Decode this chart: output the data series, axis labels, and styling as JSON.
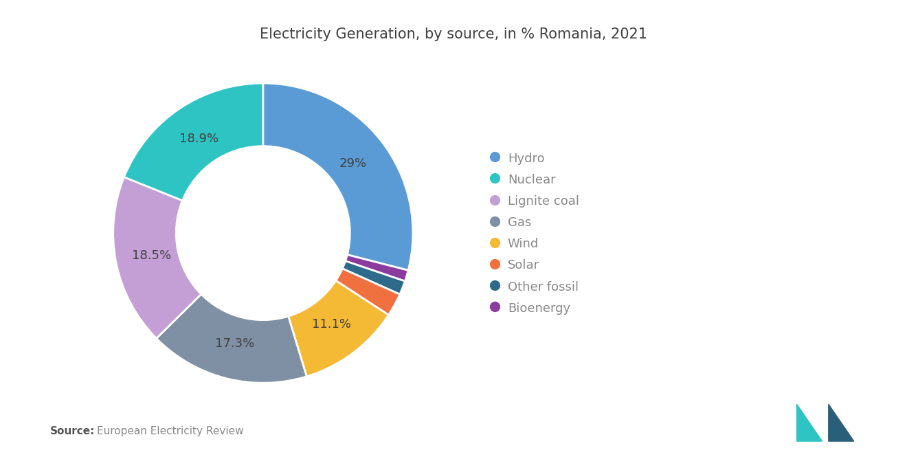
{
  "title": "Electricity Generation, by source, in % Romania, 2021",
  "labels": [
    "Hydro",
    "Nuclear",
    "Lignite coal",
    "Gas",
    "Wind",
    "Solar",
    "Other fossil",
    "Bioenergy"
  ],
  "values": [
    29.0,
    18.9,
    18.5,
    17.3,
    11.1,
    2.5,
    1.5,
    1.2
  ],
  "colors": [
    "#5B9BD5",
    "#2EC4C4",
    "#C49FD5",
    "#7F8FA4",
    "#F5BA35",
    "#F07040",
    "#2E6B8A",
    "#8B3A9E"
  ],
  "label_pcts": [
    "29%",
    "18.9%",
    "18.5%",
    "17.3%",
    "11.1%",
    "",
    "",
    ""
  ],
  "source_bold": "Source:",
  "source_text": "European Electricity Review",
  "background_color": "#FFFFFF",
  "title_color": "#404040",
  "label_color": "#404040",
  "legend_text_color": "#888888"
}
